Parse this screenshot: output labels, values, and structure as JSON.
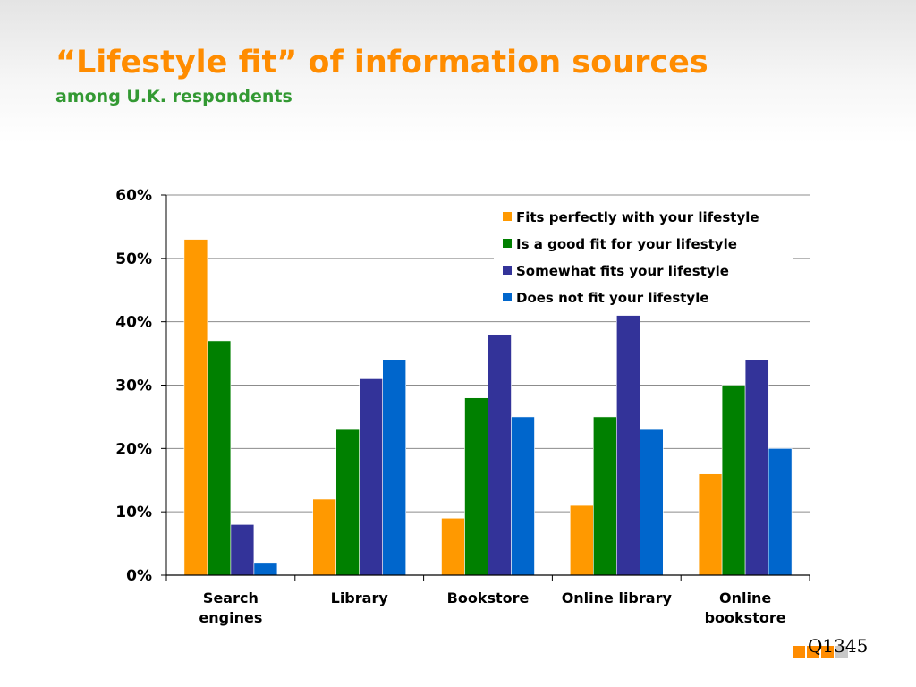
{
  "slide": {
    "title": "“Lifestyle fit” of information sources",
    "subtitle": "among U.K. respondents",
    "code": "Q1345"
  },
  "colors": {
    "title": "#ff8c00",
    "subtitle": "#339933",
    "footer_squares": [
      "#ff8c00",
      "#ff8c00",
      "#ff8c00",
      "#c8c8c8"
    ]
  },
  "chart_data": {
    "type": "bar",
    "title": "",
    "xlabel": "",
    "ylabel": "",
    "ylim": [
      0,
      60
    ],
    "y_ticks": [
      "0%",
      "10%",
      "20%",
      "30%",
      "40%",
      "50%",
      "60%"
    ],
    "grid": true,
    "legend_position": "top-right",
    "categories": [
      [
        "Search",
        "engines"
      ],
      [
        "Library"
      ],
      [
        "Bookstore"
      ],
      [
        "Online library"
      ],
      [
        "Online",
        "bookstore"
      ]
    ],
    "series": [
      {
        "name": "Fits perfectly with your lifestyle",
        "color": "#ff9900",
        "values": [
          53,
          12,
          9,
          11,
          16
        ]
      },
      {
        "name": "Is a good fit for your lifestyle",
        "color": "#008000",
        "values": [
          37,
          23,
          28,
          25,
          30
        ]
      },
      {
        "name": "Somewhat fits your lifestyle",
        "color": "#333399",
        "values": [
          8,
          31,
          38,
          41,
          34
        ]
      },
      {
        "name": "Does not fit your lifestyle",
        "color": "#0066cc",
        "values": [
          2,
          34,
          25,
          23,
          20
        ]
      }
    ]
  }
}
